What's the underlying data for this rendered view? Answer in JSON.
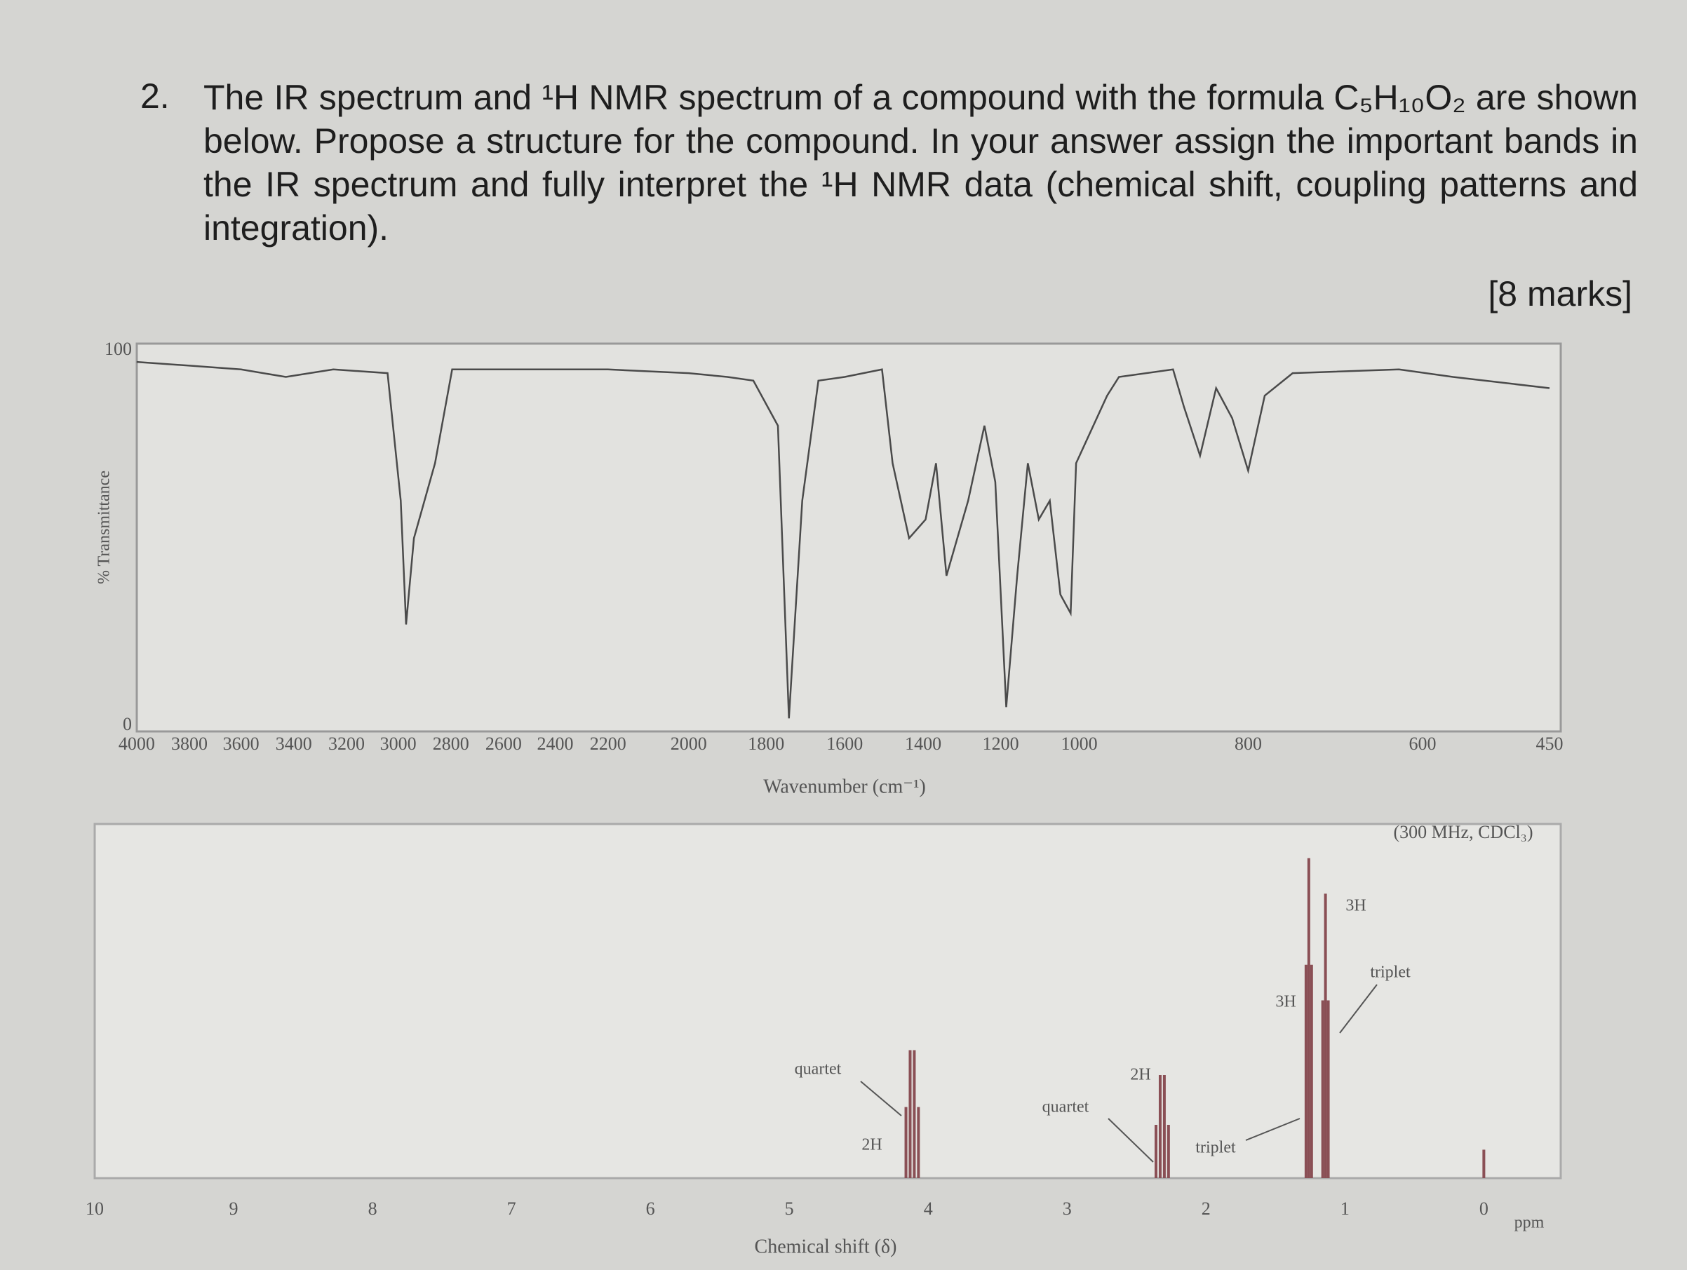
{
  "question": {
    "number": "2.",
    "text": "The IR spectrum and ¹H NMR spectrum of a compound with the formula C₅H₁₀O₂ are shown below. Propose a structure for the compound. In your answer assign the important bands in the IR spectrum and fully interpret the ¹H NMR data (chemical shift, coupling patterns and integration).",
    "marks": "[8 marks]"
  },
  "chart_data": [
    {
      "type": "line",
      "xlabel": "Wavenumber (cm⁻¹)",
      "ylabel": "% Transmittance",
      "color": "#4a4a4a",
      "xlim": [
        4000,
        450
      ],
      "ylim": [
        0,
        100
      ],
      "xticks": [
        4000,
        3800,
        3600,
        3400,
        3200,
        3000,
        2800,
        2600,
        2400,
        2200,
        2000,
        1800,
        1600,
        1400,
        1200,
        1000,
        800,
        600,
        450
      ],
      "yticks": [
        0,
        100
      ],
      "x": [
        4000,
        3800,
        3600,
        3430,
        3250,
        3041,
        2990,
        2970,
        2940,
        2860,
        2795,
        2500,
        2200,
        2000,
        1900,
        1833,
        1770,
        1742,
        1708,
        1667,
        1600,
        1505,
        1478,
        1436,
        1394,
        1367,
        1340,
        1284,
        1242,
        1214,
        1186,
        1158,
        1131,
        1103,
        1075,
        1048,
        1022,
        1008,
        967,
        953,
        889,
        876,
        857,
        838,
        819,
        800,
        781,
        749,
        627,
        564,
        450
      ],
      "values": [
        97,
        96,
        95,
        93,
        95,
        94,
        60,
        27,
        50,
        70,
        95,
        95,
        95,
        94,
        93,
        92,
        80,
        2,
        60,
        92,
        93,
        95,
        70,
        50,
        55,
        70,
        40,
        60,
        80,
        65,
        5,
        40,
        70,
        55,
        60,
        35,
        30,
        70,
        88,
        93,
        95,
        85,
        72,
        90,
        82,
        68,
        88,
        94,
        95,
        93,
        90
      ]
    },
    {
      "type": "stem",
      "xlabel": "Chemical shift (δ)",
      "unit": "ppm",
      "subtitle": "(300 MHz, CDCl₃)",
      "color": "#8a4f55",
      "xlim": [
        10,
        -0.55
      ],
      "ylim": [
        0,
        100
      ],
      "xticks": [
        10,
        9,
        8,
        7,
        6,
        5,
        4,
        3,
        2,
        1,
        0
      ],
      "x": [
        4.16,
        4.13,
        4.1,
        4.07,
        2.36,
        2.33,
        2.3,
        2.27,
        1.28,
        1.26,
        1.24,
        1.16,
        1.14,
        1.12,
        0
      ],
      "values": [
        20,
        36,
        36,
        20,
        15,
        29,
        29,
        15,
        60,
        90,
        60,
        50,
        80,
        50,
        8
      ],
      "annotations": [
        "quartet",
        "2H",
        "quartet",
        "2H",
        "triplet",
        "3H",
        "3H",
        "triplet"
      ]
    }
  ]
}
